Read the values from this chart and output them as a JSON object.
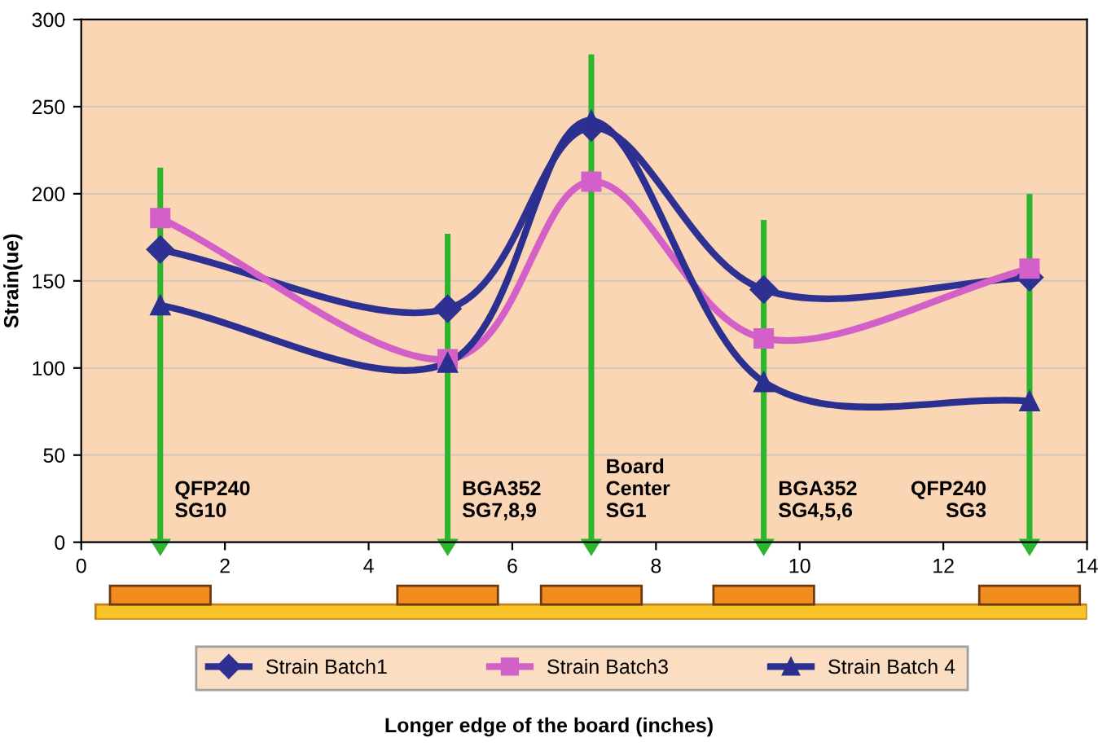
{
  "chart_data": {
    "type": "line",
    "ylabel": "Strain(ue)",
    "x": [
      1.1,
      5.1,
      7.1,
      9.5,
      13.2
    ],
    "series": [
      {
        "name": "Strain Batch1",
        "color": "#2e3192",
        "marker": "diamond",
        "values": [
          168,
          134,
          238,
          145,
          152
        ]
      },
      {
        "name": "Strain Batch3",
        "color": "#d35fc8",
        "marker": "square",
        "values": [
          186,
          105,
          207,
          117,
          157
        ]
      },
      {
        "name": "Strain Batch 4",
        "color": "#2b2f8f",
        "marker": "triangle",
        "values": [
          136,
          103,
          242,
          92,
          81
        ]
      }
    ],
    "xlim": [
      0,
      14
    ],
    "xticks": [
      0,
      2,
      4,
      6,
      8,
      10,
      12,
      14
    ],
    "ylim": [
      0,
      300
    ],
    "yticks": [
      0,
      50,
      100,
      150,
      200,
      250,
      300
    ],
    "grid": "y",
    "legend": "bottom",
    "annotations": [
      "QFP240\nSG10",
      "BGA352\nSG7,8,9",
      "Board\nCenter\nSG1",
      "BGA352\nSG4,5,6",
      "QFP240\nSG3",
      "Longer edge of the board (inches)"
    ]
  }
}
